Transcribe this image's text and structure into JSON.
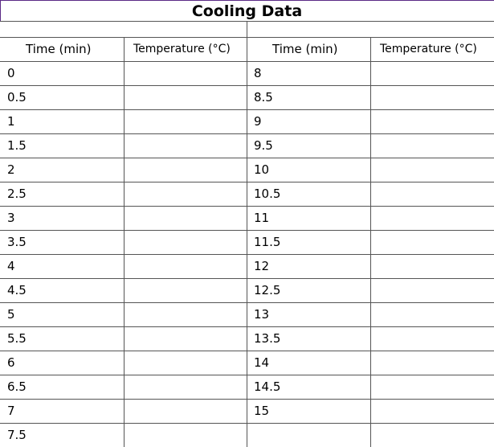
{
  "title": "Cooling Data",
  "headers": {
    "left_time": "Time (min)",
    "left_temp": "Temperature (°C)",
    "right_time": "Time (min)",
    "right_temp": "Temperature (°C)"
  },
  "left_times": [
    "0",
    "0.5",
    "1",
    "1.5",
    "2",
    "2.5",
    "3",
    "3.5",
    "4",
    "4.5",
    "5",
    "5.5",
    "6",
    "6.5",
    "7",
    "7.5"
  ],
  "right_times": [
    "8",
    "8.5",
    "9",
    "9.5",
    "10",
    "10.5",
    "11",
    "11.5",
    "12",
    "12.5",
    "13",
    "13.5",
    "14",
    "14.5",
    "15"
  ]
}
